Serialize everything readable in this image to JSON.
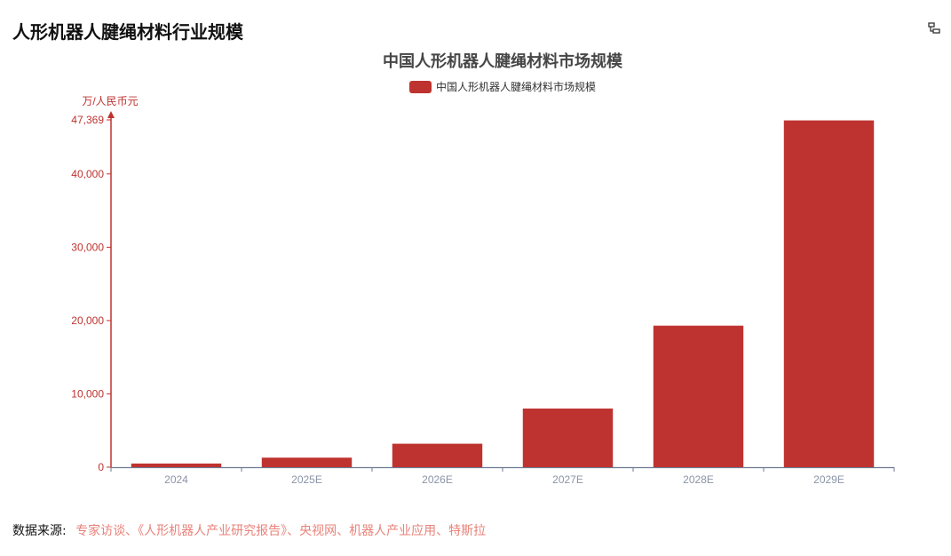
{
  "page": {
    "title": "人形机器人腱绳材料行业规模",
    "toolbar_icon": "data-view-icon"
  },
  "colors": {
    "bar": "#be3330",
    "axis": "#be3330",
    "xaxis": "#6e7a92",
    "tick_label_x": "#8a94a6",
    "title": "#464646",
    "source_link": "#e8827a"
  },
  "chart_data": {
    "type": "bar",
    "title": "中国人形机器人腱绳材料市场规模",
    "legend": [
      "中国人形机器人腱绳材料市场规模"
    ],
    "legend_position": "top-center",
    "ylabel": "万/人民币元",
    "xlabel": "",
    "categories": [
      "2024",
      "2025E",
      "2026E",
      "2027E",
      "2028E",
      "2029E"
    ],
    "series": [
      {
        "name": "中国人形机器人腱绳材料市场规模",
        "values": [
          500,
          1300,
          3200,
          8000,
          19300,
          47300
        ]
      }
    ],
    "ylim": [
      0,
      47369
    ],
    "yticks": [
      "0",
      "10,000",
      "20,000",
      "30,000",
      "40,000",
      "47,369"
    ],
    "ytick_values": [
      0,
      10000,
      20000,
      30000,
      40000,
      47369
    ],
    "grid": false
  },
  "source": {
    "label": "数据来源:",
    "text": "专家访谈、《人形机器人产业研究报告》、央视网、机器人产业应用、特斯拉"
  }
}
